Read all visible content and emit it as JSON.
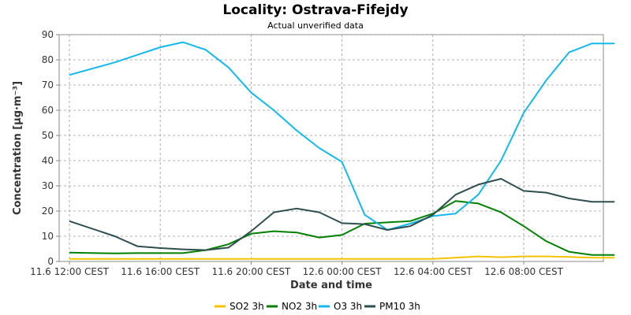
{
  "chart_data": {
    "type": "line",
    "title": "Locality: Ostrava-Fifejdy",
    "subtitle": "Actual unverified data",
    "xlabel": "Date and time",
    "ylabel": "Concentration [µg·m⁻³]",
    "ylim": [
      0,
      90
    ],
    "yticks": [
      0,
      10,
      20,
      30,
      40,
      50,
      60,
      70,
      80,
      90
    ],
    "xlim": [
      0,
      24
    ],
    "xticks": [
      {
        "x": 0,
        "label": "11.6 12:00 CEST"
      },
      {
        "x": 4,
        "label": "11.6 16:00 CEST"
      },
      {
        "x": 8,
        "label": "11.6 20:00 CEST"
      },
      {
        "x": 12,
        "label": "12.6 00:00 CEST"
      },
      {
        "x": 16,
        "label": "12.6 04:00 CEST"
      },
      {
        "x": 20,
        "label": "12.6 08:00 CEST"
      }
    ],
    "grid": true,
    "legend": "bottom",
    "x": [
      0,
      2,
      3,
      4,
      5,
      6,
      7,
      8,
      9,
      10,
      11,
      12,
      13,
      14,
      15,
      16,
      17,
      18,
      19,
      20,
      21,
      22,
      23,
      24
    ],
    "series": [
      {
        "name": "SO2 3h",
        "color": "#f5c200",
        "values": [
          1,
          1,
          1,
          1,
          1,
          1,
          1,
          1,
          1,
          1,
          1,
          1,
          1,
          1,
          1,
          1,
          1.5,
          2,
          1.7,
          2,
          2,
          1.8,
          1.5,
          1.5
        ]
      },
      {
        "name": "NO2 3h",
        "color": "#008000",
        "values": [
          3.5,
          3.2,
          3.3,
          3.3,
          3.3,
          4.5,
          6.8,
          11,
          12,
          11.5,
          9.5,
          10.5,
          15,
          15.5,
          16,
          19,
          24,
          23,
          19.5,
          14,
          8,
          3.8,
          2.6,
          2.6
        ]
      },
      {
        "name": "O3 3h",
        "color": "#15b8ec",
        "values": [
          74,
          79,
          82,
          85,
          87,
          84,
          77,
          67,
          60,
          52,
          45,
          39.5,
          18.5,
          12.5,
          15,
          18,
          19,
          26.5,
          40,
          59,
          72,
          83,
          86.5,
          86.5
        ]
      },
      {
        "name": "PM10 3h",
        "color": "#2f4f4f",
        "values": [
          16,
          10,
          6,
          5.3,
          4.8,
          4.5,
          5.5,
          12,
          19.5,
          21,
          19.5,
          15.2,
          14.8,
          12.5,
          14,
          18.5,
          26.5,
          30.5,
          32.8,
          28,
          27.3,
          25,
          23.7,
          23.7
        ]
      }
    ]
  }
}
